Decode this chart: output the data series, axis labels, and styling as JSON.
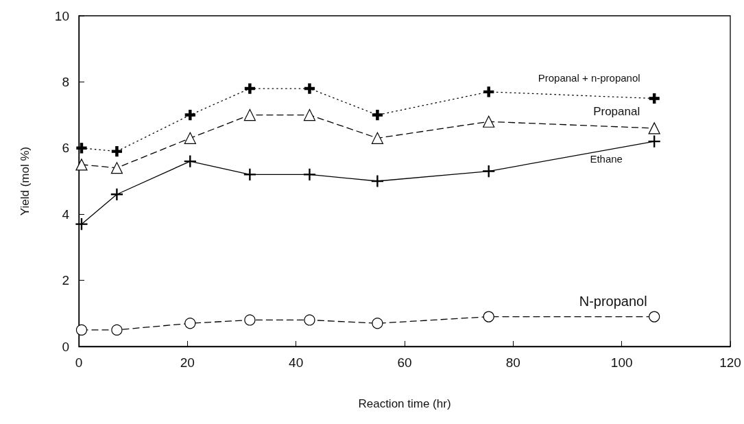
{
  "chart_data": {
    "type": "line",
    "xlabel": "Reaction time (hr)",
    "ylabel": "Yield (mol %)",
    "xlim": [
      0,
      120
    ],
    "xticks": [
      0,
      20,
      40,
      60,
      80,
      100,
      120
    ],
    "ylim": [
      0,
      10
    ],
    "yticks": [
      0,
      2,
      4,
      6,
      8,
      10
    ],
    "grid": false,
    "legend": false,
    "x": [
      0.5,
      7,
      20.5,
      31.5,
      42.5,
      55,
      75.5,
      106
    ],
    "series": [
      {
        "name": "Propanal + n-propanol",
        "color": "#000000",
        "marker": "cross",
        "line_style": "dotted",
        "values": [
          6.0,
          5.9,
          7.0,
          7.8,
          7.8,
          7.0,
          7.7,
          7.5
        ]
      },
      {
        "name": "Propanal",
        "color": "#000000",
        "marker": "triangle",
        "line_style": "dashed",
        "values": [
          5.5,
          5.4,
          6.3,
          7.0,
          7.0,
          6.3,
          6.8,
          6.6
        ]
      },
      {
        "name": "Ethane",
        "color": "#000000",
        "marker": "cross",
        "line_style": "solid",
        "values": [
          3.7,
          4.6,
          5.6,
          5.2,
          5.2,
          5.0,
          5.3,
          6.2
        ]
      },
      {
        "name": "N-propanol",
        "color": "#000000",
        "marker": "circle",
        "line_style": "dashed",
        "values": [
          0.5,
          0.5,
          0.7,
          0.8,
          0.8,
          0.7,
          0.9,
          0.9
        ]
      }
    ]
  }
}
